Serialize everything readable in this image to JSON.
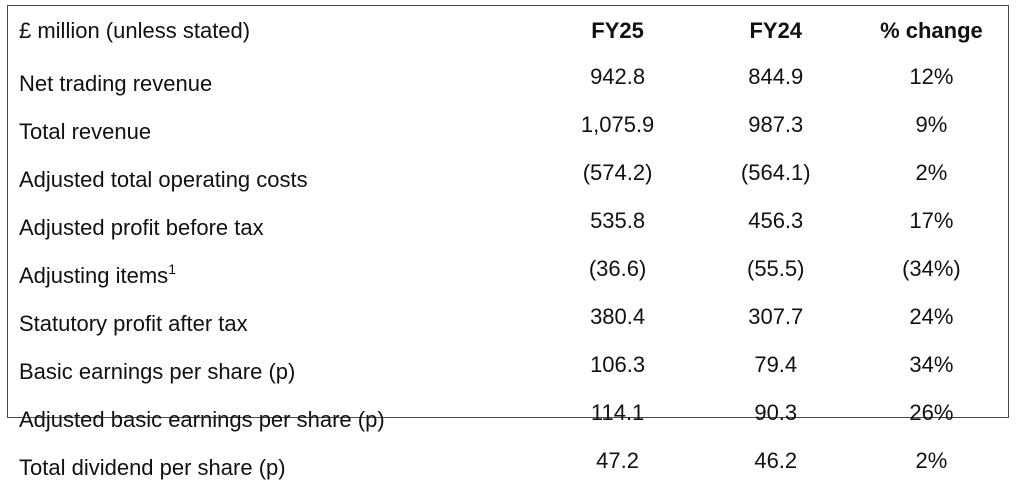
{
  "table": {
    "headers": {
      "label": "£ million (unless stated)",
      "fy25": "FY25",
      "fy24": "FY24",
      "change": "% change"
    },
    "rows": [
      {
        "label": "Net trading revenue",
        "footnote": "",
        "fy25": "942.8",
        "fy24": "844.9",
        "change": "12%"
      },
      {
        "label": "Total revenue",
        "footnote": "",
        "fy25": "1,075.9",
        "fy24": "987.3",
        "change": "9%"
      },
      {
        "label": "Adjusted total operating costs",
        "footnote": "",
        "fy25": "(574.2)",
        "fy24": "(564.1)",
        "change": "2%"
      },
      {
        "label": "Adjusted profit before tax",
        "footnote": "",
        "fy25": "535.8",
        "fy24": "456.3",
        "change": "17%"
      },
      {
        "label": "Adjusting items",
        "footnote": "1",
        "fy25": "(36.6)",
        "fy24": "(55.5)",
        "change": "(34%)"
      },
      {
        "label": "Statutory profit after tax",
        "footnote": "",
        "fy25": "380.4",
        "fy24": "307.7",
        "change": "24%"
      },
      {
        "label": "Basic earnings per share (p)",
        "footnote": "",
        "fy25": "106.3",
        "fy24": "79.4",
        "change": "34%"
      },
      {
        "label": "Adjusted basic earnings per share (p)",
        "footnote": "",
        "fy25": "114.1",
        "fy24": "90.3",
        "change": "26%"
      },
      {
        "label": "Total dividend per share (p)",
        "footnote": "",
        "fy25": "47.2",
        "fy24": "46.2",
        "change": "2%"
      }
    ]
  }
}
